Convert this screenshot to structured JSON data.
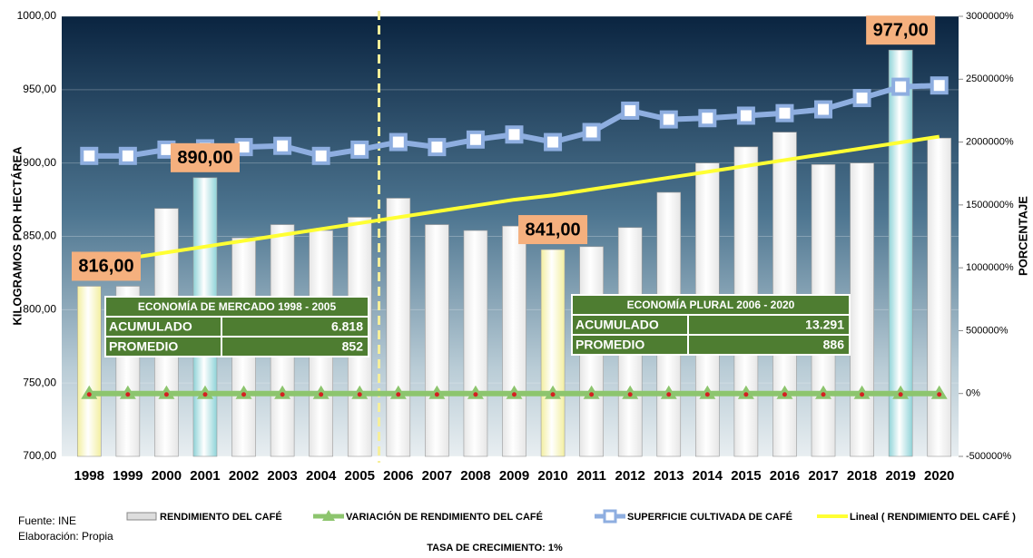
{
  "chart_data": {
    "type": "bar",
    "categories": [
      "1998",
      "1999",
      "2000",
      "2001",
      "2002",
      "2003",
      "2004",
      "2005",
      "2006",
      "2007",
      "2008",
      "2009",
      "2010",
      "2011",
      "2012",
      "2013",
      "2014",
      "2015",
      "2016",
      "2017",
      "2018",
      "2019",
      "2020"
    ],
    "ylabel": "KILOGRAMOS POR HECTÁREA",
    "y2label": "PORCENTAJE",
    "ylim": [
      700,
      1000
    ],
    "yticks": [
      {
        "value": 700,
        "label": "700,00"
      },
      {
        "value": 750,
        "label": "750,00"
      },
      {
        "value": 800,
        "label": "800,00"
      },
      {
        "value": 850,
        "label": "850,00"
      },
      {
        "value": 900,
        "label": "900,00"
      },
      {
        "value": 950,
        "label": "950,00"
      },
      {
        "value": 1000,
        "label": "1000,00"
      }
    ],
    "y2lim": [
      -500000,
      3000000
    ],
    "y2ticks": [
      {
        "value": -500000,
        "label": "-500000%"
      },
      {
        "value": 0,
        "label": "0%"
      },
      {
        "value": 500000,
        "label": "500000%"
      },
      {
        "value": 1000000,
        "label": "1000000%"
      },
      {
        "value": 1500000,
        "label": "1500000%"
      },
      {
        "value": 2000000,
        "label": "2000000%"
      },
      {
        "value": 2500000,
        "label": "2500000%"
      },
      {
        "value": 3000000,
        "label": "3000000%"
      }
    ],
    "series": [
      {
        "name": "RENDIMIENTO DEL CAFÉ",
        "type": "bar",
        "color": "#e6e6e6",
        "colors": [
          "#f3efa0",
          "#e6e6e6",
          "#e6e6e6",
          "#8fd3d8",
          "#e6e6e6",
          "#e6e6e6",
          "#e6e6e6",
          "#e6e6e6",
          "#e6e6e6",
          "#e6e6e6",
          "#e6e6e6",
          "#e6e6e6",
          "#f3efa0",
          "#e6e6e6",
          "#e6e6e6",
          "#e6e6e6",
          "#e6e6e6",
          "#e6e6e6",
          "#e6e6e6",
          "#e6e6e6",
          "#e6e6e6",
          "#8fd3d8",
          "#e6e6e6"
        ],
        "values": [
          816,
          816,
          869,
          890,
          849,
          858,
          854,
          863,
          876,
          858,
          854,
          857,
          841,
          843,
          856,
          880,
          900,
          911,
          921,
          899,
          900,
          977,
          917
        ],
        "value_labels": [
          "816,00",
          null,
          null,
          "890,00",
          null,
          null,
          null,
          null,
          null,
          null,
          null,
          null,
          "841,00",
          null,
          null,
          null,
          null,
          null,
          null,
          null,
          null,
          "977,00",
          null
        ]
      },
      {
        "name": "VARIACIÓN DE RENDIMIENTO DEL CAFÉ",
        "type": "line",
        "axis": "y2",
        "color": "#8dc56e",
        "values": [
          0,
          0,
          0,
          0,
          0,
          0,
          0,
          0,
          0,
          0,
          0,
          0,
          0,
          0,
          0,
          0,
          0,
          0,
          0,
          0,
          0,
          0,
          0
        ]
      },
      {
        "name": "SUPERFICIE CULTIVADA DE CAFÉ",
        "type": "line",
        "axis": "y2",
        "color": "#8eaee0",
        "values": [
          1890000,
          1890000,
          1940000,
          1950000,
          1960000,
          1970000,
          1890000,
          1940000,
          2000000,
          1960000,
          2020000,
          2060000,
          2000000,
          2080000,
          2250000,
          2180000,
          2190000,
          2210000,
          2230000,
          2260000,
          2350000,
          2440000,
          2450000
        ]
      },
      {
        "name": "Lineal ( RENDIMIENTO DEL CAFÉ )",
        "type": "line",
        "color": "#ffff33",
        "values": [
          831,
          835,
          839,
          843,
          847,
          851,
          855,
          859,
          863,
          867,
          871,
          875,
          878,
          882,
          886,
          890,
          894,
          898,
          902,
          906,
          910,
          914,
          918
        ]
      }
    ],
    "tables": [
      {
        "title": "ECONOMÍA DE MERCADO 1998 - 2005",
        "rows": [
          [
            "ACUMULADO",
            "6.818"
          ],
          [
            "PROMEDIO",
            "852"
          ]
        ]
      },
      {
        "title": "ECONOMÍA PLURAL 2006 - 2020",
        "rows": [
          [
            "ACUMULADO",
            "13.291"
          ],
          [
            "PROMEDIO",
            "886"
          ]
        ]
      }
    ],
    "source": "Fuente: INE",
    "credit": "Elaboración: Propia",
    "note": "TASA DE CRECIMIENTO: 1%"
  }
}
